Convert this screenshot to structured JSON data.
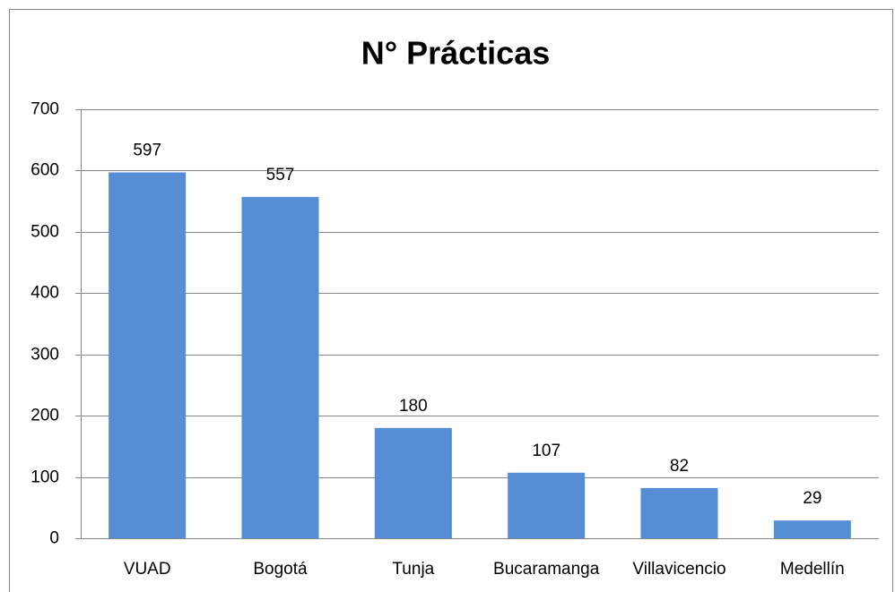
{
  "chart_data": {
    "type": "bar",
    "title": "N° Prácticas",
    "categories": [
      "VUAD",
      "Bogotá",
      "Tunja",
      "Bucaramanga",
      "Villavicencio",
      "Medellín"
    ],
    "values": [
      597,
      557,
      180,
      107,
      82,
      29
    ],
    "color": "#558ed5",
    "ylim": [
      0,
      700
    ],
    "yticks": [
      0,
      100,
      200,
      300,
      400,
      500,
      600,
      700
    ],
    "grid": true
  }
}
